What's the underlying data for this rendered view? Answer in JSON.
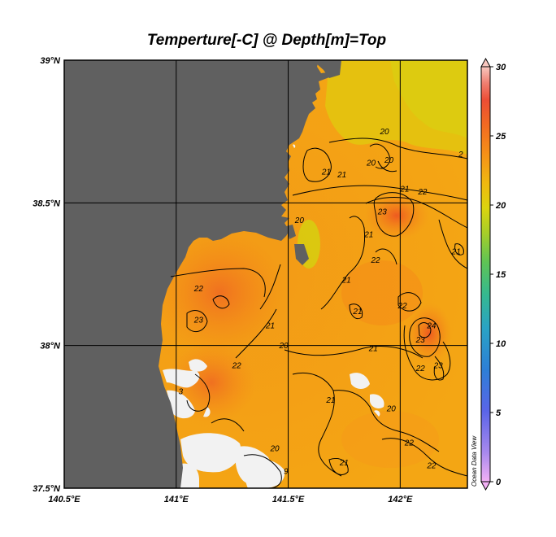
{
  "title": "Temperture[-C] @ Depth[m]=Top",
  "credit": "Ocean Data View",
  "map": {
    "lon_range": [
      140.5,
      142.3
    ],
    "lat_range": [
      37.5,
      39.0
    ],
    "lon_ticks": [
      {
        "value": 140.5,
        "label": "140.5°E"
      },
      {
        "value": 141.0,
        "label": "141°E"
      },
      {
        "value": 141.5,
        "label": "141.5°E"
      },
      {
        "value": 142.0,
        "label": "142°E"
      }
    ],
    "lat_ticks": [
      {
        "value": 39.0,
        "label": "39°N"
      },
      {
        "value": 38.5,
        "label": "38.5°N"
      },
      {
        "value": 38.0,
        "label": "38°N"
      },
      {
        "value": 37.5,
        "label": "37.5°N"
      }
    ],
    "grid": true,
    "land_color": "#606060",
    "missing_data_color": "#f2f2f2"
  },
  "colorbar": {
    "min": 0,
    "max": 30,
    "ticks": [
      {
        "value": 30,
        "label": "30"
      },
      {
        "value": 25,
        "label": "25"
      },
      {
        "value": 20,
        "label": "20"
      },
      {
        "value": 15,
        "label": "15"
      },
      {
        "value": 10,
        "label": "10"
      },
      {
        "value": 5,
        "label": "5"
      },
      {
        "value": 0,
        "label": "0"
      }
    ],
    "colors": [
      "#f2b0f5",
      "#a889ee",
      "#5a65e8",
      "#2d7fd6",
      "#2aa3c5",
      "#35b890",
      "#5fc454",
      "#a8ce28",
      "#dcd40e",
      "#f0b810",
      "#f59018",
      "#f26a22",
      "#ec4d35",
      "#f07e70",
      "#f9c8c0"
    ]
  },
  "contour_labels": [
    {
      "text": "20",
      "lon": 141.93,
      "lat": 38.74
    },
    {
      "text": "20",
      "lon": 141.87,
      "lat": 38.63
    },
    {
      "text": "20",
      "lon": 141.95,
      "lat": 38.64
    },
    {
      "text": "2",
      "lon": 142.27,
      "lat": 38.66
    },
    {
      "text": "21",
      "lon": 141.67,
      "lat": 38.6
    },
    {
      "text": "21",
      "lon": 141.74,
      "lat": 38.59
    },
    {
      "text": "21",
      "lon": 142.02,
      "lat": 38.54
    },
    {
      "text": "22",
      "lon": 142.1,
      "lat": 38.53
    },
    {
      "text": "23",
      "lon": 141.92,
      "lat": 38.46
    },
    {
      "text": "21",
      "lon": 141.86,
      "lat": 38.38
    },
    {
      "text": "22",
      "lon": 141.89,
      "lat": 38.29
    },
    {
      "text": "21",
      "lon": 142.25,
      "lat": 38.32
    },
    {
      "text": "20",
      "lon": 141.55,
      "lat": 38.43
    },
    {
      "text": "21",
      "lon": 141.76,
      "lat": 38.22
    },
    {
      "text": "21",
      "lon": 141.81,
      "lat": 38.11
    },
    {
      "text": "22",
      "lon": 142.01,
      "lat": 38.13
    },
    {
      "text": "24",
      "lon": 142.14,
      "lat": 38.06
    },
    {
      "text": "23",
      "lon": 142.09,
      "lat": 38.01
    },
    {
      "text": "22",
      "lon": 141.1,
      "lat": 38.19
    },
    {
      "text": "23",
      "lon": 141.1,
      "lat": 38.08
    },
    {
      "text": "21",
      "lon": 141.42,
      "lat": 38.06
    },
    {
      "text": "20",
      "lon": 141.48,
      "lat": 37.99
    },
    {
      "text": "22",
      "lon": 141.27,
      "lat": 37.92
    },
    {
      "text": "21",
      "lon": 141.88,
      "lat": 37.98
    },
    {
      "text": "22",
      "lon": 142.09,
      "lat": 37.91
    },
    {
      "text": "23",
      "lon": 142.17,
      "lat": 37.92
    },
    {
      "text": "3",
      "lon": 141.02,
      "lat": 37.83
    },
    {
      "text": "21",
      "lon": 141.69,
      "lat": 37.8
    },
    {
      "text": "20",
      "lon": 141.96,
      "lat": 37.77
    },
    {
      "text": "22",
      "lon": 142.04,
      "lat": 37.65
    },
    {
      "text": "22",
      "lon": 142.14,
      "lat": 37.57
    },
    {
      "text": "21",
      "lon": 141.75,
      "lat": 37.58
    },
    {
      "text": "20",
      "lon": 141.44,
      "lat": 37.63
    },
    {
      "text": "9",
      "lon": 141.49,
      "lat": 37.55
    }
  ]
}
